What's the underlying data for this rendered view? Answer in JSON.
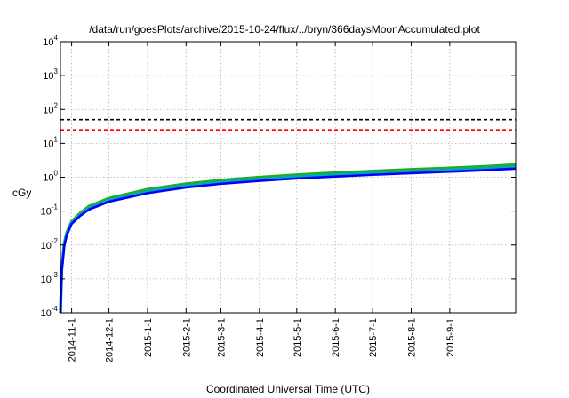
{
  "chart_data": {
    "type": "line",
    "title": "/data/run/goesPlots/archive/2015-10-24/flux/../bryn/366daysMoonAccumulated.plot",
    "xlabel": "Coordinated Universal Time (UTC)",
    "ylabel": "cGy",
    "yscale": "log",
    "ylim": [
      0.0001,
      10000
    ],
    "xlim": [
      "2014-10-23",
      "2015-10-24"
    ],
    "grid": true,
    "legend": "none",
    "y_ticks": [
      {
        "value": 0.0001,
        "base": "10",
        "exp": "-4"
      },
      {
        "value": 0.001,
        "base": "10",
        "exp": "-3"
      },
      {
        "value": 0.01,
        "base": "10",
        "exp": "-2"
      },
      {
        "value": 0.1,
        "base": "10",
        "exp": "-1"
      },
      {
        "value": 1,
        "base": "10",
        "exp": "0"
      },
      {
        "value": 10,
        "base": "10",
        "exp": "1"
      },
      {
        "value": 100,
        "base": "10",
        "exp": "2"
      },
      {
        "value": 1000,
        "base": "10",
        "exp": "3"
      },
      {
        "value": 10000,
        "base": "10",
        "exp": "4"
      }
    ],
    "x_ticks": [
      "2014-11-1",
      "2014-12-1",
      "2015-1-1",
      "2015-2-1",
      "2015-3-1",
      "2015-4-1",
      "2015-5-1",
      "2015-6-1",
      "2015-7-1",
      "2015-8-1",
      "2015-9-1"
    ],
    "reference_lines": [
      {
        "value": 50,
        "color": "#000000",
        "style": "dashed"
      },
      {
        "value": 25,
        "color": "#ff0000",
        "style": "dashed"
      }
    ],
    "series": [
      {
        "color": "#22aa22",
        "x": [
          "2014-10-23",
          "2014-10-24",
          "2014-10-26",
          "2014-10-28",
          "2014-11-1",
          "2014-11-8",
          "2014-11-15",
          "2014-12-1",
          "2015-1-1",
          "2015-2-1",
          "2015-3-1",
          "2015-4-1",
          "2015-5-1",
          "2015-6-1",
          "2015-7-1",
          "2015-8-1",
          "2015-9-1",
          "2015-10-1",
          "2015-10-24"
        ],
        "y": [
          0.0001,
          0.002,
          0.011,
          0.023,
          0.05,
          0.088,
          0.14,
          0.24,
          0.44,
          0.64,
          0.82,
          1.0,
          1.18,
          1.35,
          1.52,
          1.7,
          1.88,
          2.1,
          2.35
        ]
      },
      {
        "color": "#00aaaa",
        "x": [
          "2014-10-23",
          "2014-10-24",
          "2014-10-26",
          "2014-10-28",
          "2014-11-1",
          "2014-11-8",
          "2014-11-15",
          "2014-12-1",
          "2015-1-1",
          "2015-2-1",
          "2015-3-1",
          "2015-4-1",
          "2015-5-1",
          "2015-6-1",
          "2015-7-1",
          "2015-8-1",
          "2015-9-1",
          "2015-10-1",
          "2015-10-24"
        ],
        "y": [
          0.0001,
          0.0018,
          0.01,
          0.021,
          0.046,
          0.08,
          0.125,
          0.215,
          0.39,
          0.57,
          0.73,
          0.89,
          1.05,
          1.2,
          1.35,
          1.51,
          1.67,
          1.86,
          2.05
        ]
      },
      {
        "color": "#0000ff",
        "x": [
          "2014-10-23",
          "2014-10-24",
          "2014-10-26",
          "2014-10-28",
          "2014-11-1",
          "2014-11-8",
          "2014-11-15",
          "2014-12-1",
          "2015-1-1",
          "2015-2-1",
          "2015-3-1",
          "2015-4-1",
          "2015-5-1",
          "2015-6-1",
          "2015-7-1",
          "2015-8-1",
          "2015-9-1",
          "2015-10-1",
          "2015-10-24"
        ],
        "y": [
          0.0001,
          0.0016,
          0.009,
          0.019,
          0.042,
          0.073,
          0.112,
          0.19,
          0.34,
          0.5,
          0.64,
          0.78,
          0.92,
          1.05,
          1.18,
          1.32,
          1.46,
          1.63,
          1.8
        ]
      }
    ]
  }
}
